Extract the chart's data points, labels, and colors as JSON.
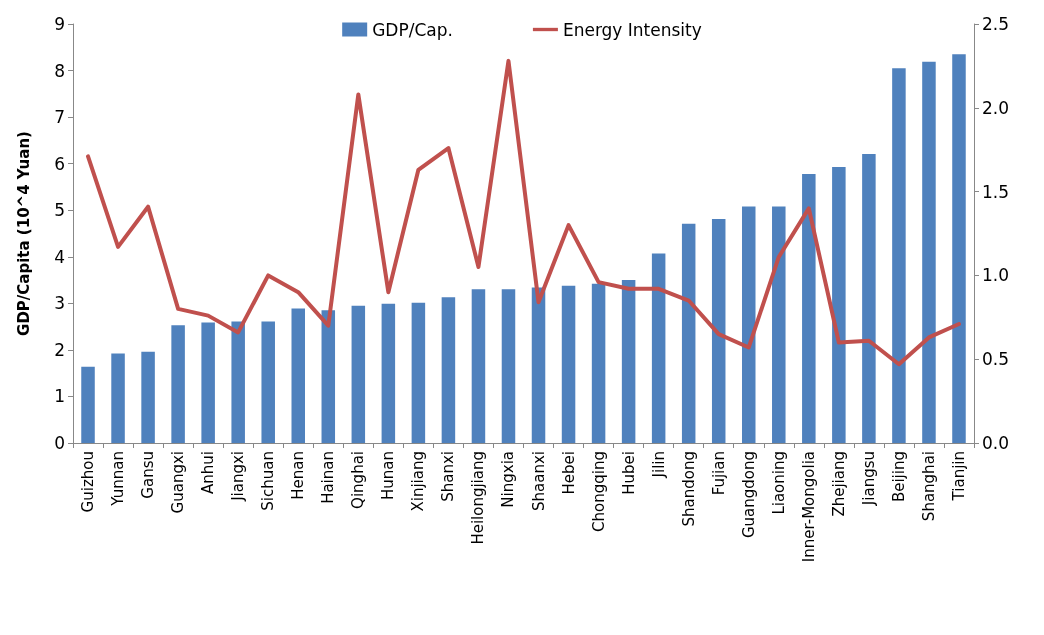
{
  "chart_data": {
    "type": "bar",
    "ylabel": "GDP/Capita (10^4 Yuan)",
    "categories": [
      "Guizhou",
      "Yunnan",
      "Gansu",
      "Guangxi",
      "Anhui",
      "Jiangxi",
      "Sichuan",
      "Henan",
      "Hainan",
      "Qinghai",
      "Hunan",
      "Xinjiang",
      "Shanxi",
      "Heilongjiang",
      "Ningxia",
      "Shaanxi",
      "Hebei",
      "Chongqing",
      "Hubei",
      "Jilin",
      "Shandong",
      "Fujian",
      "Guangdong",
      "Liaoning",
      "Inner-Mongolia",
      "Zhejiang",
      "Jiangsu",
      "Beijing",
      "Shanghai",
      "Tianjin"
    ],
    "series": [
      {
        "name": "GDP/Cap.",
        "color": "#4f81bd",
        "values": [
          1.64,
          1.92,
          1.96,
          2.53,
          2.59,
          2.61,
          2.61,
          2.89,
          2.85,
          2.95,
          2.99,
          3.01,
          3.13,
          3.3,
          3.3,
          3.34,
          3.38,
          3.42,
          3.5,
          4.07,
          4.71,
          4.81,
          5.08,
          5.08,
          5.78,
          5.93,
          6.21,
          8.05,
          8.19,
          8.35
        ]
      },
      {
        "name": "Energy Intensity",
        "type": "line",
        "axis": "y2",
        "color": "#c0504d",
        "values": [
          1.71,
          1.17,
          1.41,
          0.8,
          0.76,
          0.66,
          1.0,
          0.9,
          0.7,
          2.08,
          0.9,
          1.63,
          1.76,
          1.05,
          2.28,
          0.84,
          1.3,
          0.96,
          0.92,
          0.92,
          0.85,
          0.65,
          0.57,
          1.11,
          1.4,
          0.6,
          0.61,
          0.47,
          0.63,
          0.71
        ]
      }
    ],
    "ylim": [
      0,
      9
    ],
    "yticks": [
      0,
      1,
      2,
      3,
      4,
      5,
      6,
      7,
      8,
      9
    ],
    "y2lim": [
      0,
      2.5
    ],
    "y2ticks": [
      {
        "value": 0,
        "label": "0.0"
      },
      {
        "value": 0.5,
        "label": "0.5"
      },
      {
        "value": 1,
        "label": "1.0"
      },
      {
        "value": 1.5,
        "label": "1.5"
      },
      {
        "value": 2,
        "label": "2.0"
      },
      {
        "value": 2.5,
        "label": "2.5"
      }
    ],
    "legend": "top",
    "grid": false,
    "marker": "none",
    "line_style": "solid"
  }
}
